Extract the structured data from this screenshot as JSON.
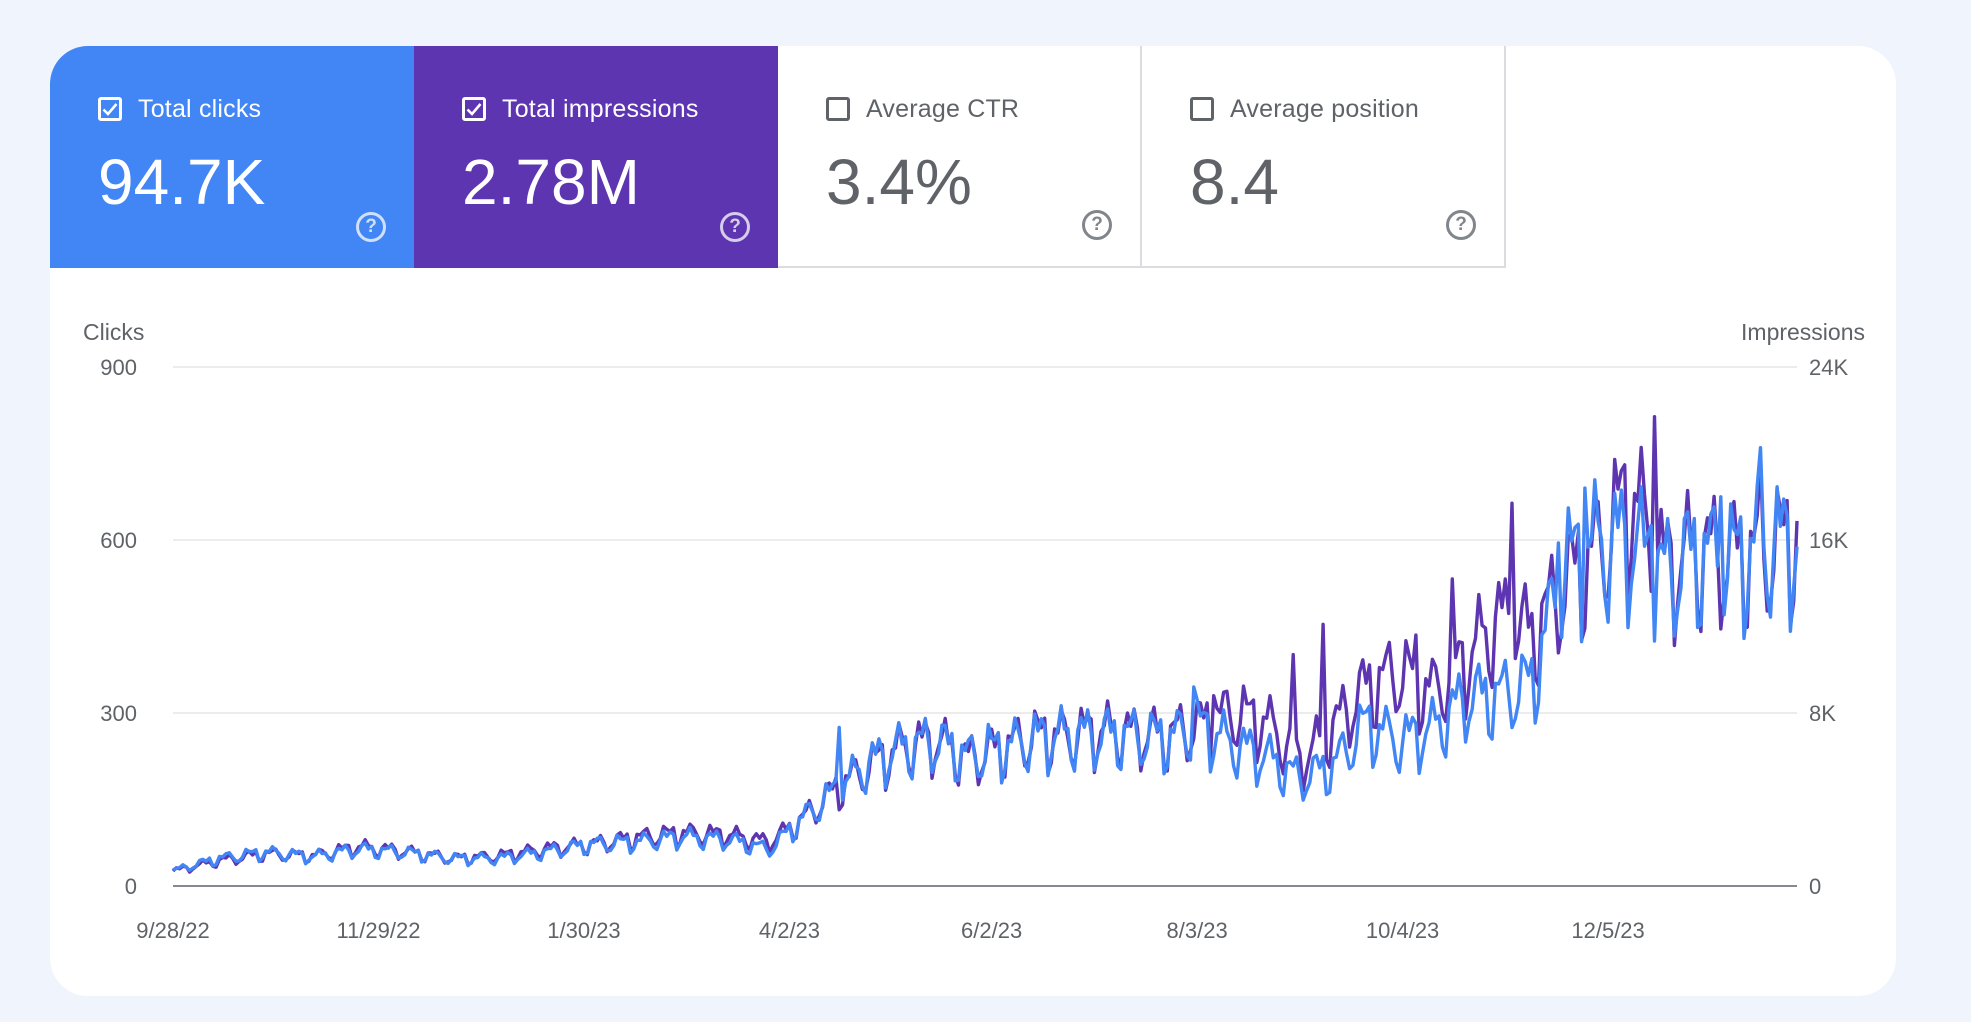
{
  "tiles": [
    {
      "label": "Total clicks",
      "value": "94.7K",
      "checked": true,
      "color": "#4285f4"
    },
    {
      "label": "Total impressions",
      "value": "2.78M",
      "checked": true,
      "color": "#5e35b1"
    },
    {
      "label": "Average CTR",
      "value": "3.4%",
      "checked": false
    },
    {
      "label": "Average position",
      "value": "8.4",
      "checked": false
    }
  ],
  "help_glyph": "?",
  "chart_data": {
    "type": "line",
    "ylabel_left": "Clicks",
    "ylabel_right": "Impressions",
    "y_left_ticks": [
      "0",
      "300",
      "600",
      "900"
    ],
    "y_right_ticks": [
      "0",
      "8K",
      "16K",
      "24K"
    ],
    "ylim_left": [
      0,
      900
    ],
    "ylim_right": [
      0,
      24000
    ],
    "x_ticks": [
      "9/28/22",
      "11/29/22",
      "1/30/23",
      "4/2/23",
      "6/2/23",
      "8/3/23",
      "10/4/23",
      "12/5/23"
    ],
    "x_tick_day_index": [
      0,
      62,
      124,
      186,
      247,
      309,
      371,
      433
    ],
    "x_range_days": [
      0,
      490
    ],
    "grid": true,
    "legend": "none",
    "series": [
      {
        "name": "Total impressions",
        "axis": "right",
        "color": "#5e35b1",
        "points": [
          [
            0,
            650
          ],
          [
            14,
            1100
          ],
          [
            28,
            1400
          ],
          [
            42,
            1300
          ],
          [
            56,
            1700
          ],
          [
            70,
            1500
          ],
          [
            84,
            1200
          ],
          [
            98,
            1300
          ],
          [
            112,
            1600
          ],
          [
            126,
            1800
          ],
          [
            140,
            2100
          ],
          [
            154,
            2300
          ],
          [
            168,
            2200
          ],
          [
            180,
            1900
          ],
          [
            190,
            2900
          ],
          [
            200,
            4200
          ],
          [
            210,
            5200
          ],
          [
            220,
            6000
          ],
          [
            230,
            6300
          ],
          [
            240,
            5500
          ],
          [
            250,
            6000
          ],
          [
            260,
            6500
          ],
          [
            270,
            6500
          ],
          [
            280,
            6700
          ],
          [
            290,
            6600
          ],
          [
            300,
            6500
          ],
          [
            310,
            7000
          ],
          [
            320,
            7500
          ],
          [
            330,
            7100
          ],
          [
            340,
            5400
          ],
          [
            350,
            6900
          ],
          [
            360,
            8600
          ],
          [
            370,
            9300
          ],
          [
            380,
            8400
          ],
          [
            390,
            9800
          ],
          [
            400,
            11600
          ],
          [
            410,
            10900
          ],
          [
            420,
            13100
          ],
          [
            430,
            14600
          ],
          [
            440,
            16900
          ],
          [
            450,
            13800
          ],
          [
            460,
            14500
          ],
          [
            470,
            14300
          ],
          [
            480,
            14500
          ],
          [
            490,
            15100
          ]
        ],
        "peaks": [
          [
            314,
            8800
          ],
          [
            338,
            10700
          ],
          [
            347,
            12100
          ],
          [
            375,
            11600
          ],
          [
            386,
            14200
          ],
          [
            404,
            17700
          ],
          [
            437,
            19200
          ],
          [
            447,
            21700
          ],
          [
            479,
            19600
          ]
        ]
      },
      {
        "name": "Total clicks",
        "axis": "left",
        "color": "#4285f4",
        "points": [
          [
            0,
            25
          ],
          [
            14,
            45
          ],
          [
            28,
            55
          ],
          [
            42,
            48
          ],
          [
            56,
            60
          ],
          [
            70,
            55
          ],
          [
            84,
            45
          ],
          [
            98,
            45
          ],
          [
            112,
            55
          ],
          [
            126,
            68
          ],
          [
            140,
            72
          ],
          [
            154,
            80
          ],
          [
            168,
            75
          ],
          [
            180,
            60
          ],
          [
            190,
            110
          ],
          [
            200,
            155
          ],
          [
            210,
            200
          ],
          [
            220,
            225
          ],
          [
            230,
            235
          ],
          [
            240,
            210
          ],
          [
            250,
            225
          ],
          [
            260,
            240
          ],
          [
            270,
            245
          ],
          [
            280,
            245
          ],
          [
            290,
            245
          ],
          [
            300,
            240
          ],
          [
            310,
            260
          ],
          [
            320,
            230
          ],
          [
            330,
            210
          ],
          [
            340,
            175
          ],
          [
            350,
            195
          ],
          [
            360,
            265
          ],
          [
            370,
            235
          ],
          [
            380,
            255
          ],
          [
            390,
            305
          ],
          [
            400,
            310
          ],
          [
            410,
            330
          ],
          [
            420,
            520
          ],
          [
            430,
            555
          ],
          [
            440,
            560
          ],
          [
            450,
            505
          ],
          [
            460,
            540
          ],
          [
            470,
            530
          ],
          [
            480,
            555
          ],
          [
            490,
            560
          ]
        ],
        "peaks": [
          [
            201,
            275
          ],
          [
            246,
            280
          ],
          [
            308,
            345
          ],
          [
            418,
            595
          ],
          [
            426,
            690
          ],
          [
            446,
            625
          ],
          [
            467,
            675
          ],
          [
            479,
            760
          ]
        ]
      }
    ]
  }
}
